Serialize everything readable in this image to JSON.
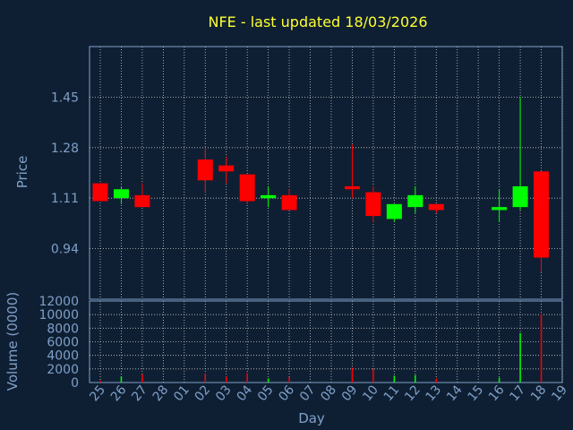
{
  "title": "NFE - last updated 18/03/2026",
  "colors": {
    "background": "#0f1f33",
    "title": "#ffff33",
    "axis_text": "#7fa0c8",
    "grid": "#c8c8c8",
    "up": "#00ff00",
    "down": "#ff0000"
  },
  "chart_data": [
    {
      "type": "candlestick",
      "ylabel": "Price",
      "yticks": [
        "0.94",
        "1.11",
        "1.28",
        "1.45"
      ],
      "ytick_values": [
        0.94,
        1.11,
        1.28,
        1.45
      ],
      "ylim": [
        0.77,
        1.62
      ],
      "grid": true,
      "x": [
        "25",
        "26",
        "27",
        "28",
        "01",
        "02",
        "03",
        "04",
        "05",
        "06",
        "07",
        "08",
        "09",
        "10",
        "11",
        "12",
        "13",
        "14",
        "15",
        "16",
        "17",
        "18",
        "19"
      ],
      "candles": [
        {
          "x": "25",
          "open": 1.16,
          "close": 1.1,
          "high": 1.16,
          "low": 1.1
        },
        {
          "x": "26",
          "open": 1.11,
          "close": 1.14,
          "high": 1.15,
          "low": 1.09
        },
        {
          "x": "27",
          "open": 1.12,
          "close": 1.08,
          "high": 1.16,
          "low": 1.08
        },
        {
          "x": "02",
          "open": 1.24,
          "close": 1.17,
          "high": 1.28,
          "low": 1.13
        },
        {
          "x": "03",
          "open": 1.22,
          "close": 1.2,
          "high": 1.25,
          "low": 1.16
        },
        {
          "x": "04",
          "open": 1.19,
          "close": 1.1,
          "high": 1.19,
          "low": 1.09
        },
        {
          "x": "05",
          "open": 1.11,
          "close": 1.12,
          "high": 1.15,
          "low": 1.08
        },
        {
          "x": "06",
          "open": 1.12,
          "close": 1.07,
          "high": 1.14,
          "low": 1.07
        },
        {
          "x": "09",
          "open": 1.15,
          "close": 1.14,
          "high": 1.29,
          "low": 1.11
        },
        {
          "x": "10",
          "open": 1.13,
          "close": 1.05,
          "high": 1.15,
          "low": 1.03
        },
        {
          "x": "11",
          "open": 1.04,
          "close": 1.09,
          "high": 1.09,
          "low": 1.03
        },
        {
          "x": "12",
          "open": 1.08,
          "close": 1.12,
          "high": 1.15,
          "low": 1.06
        },
        {
          "x": "13",
          "open": 1.09,
          "close": 1.07,
          "high": 1.09,
          "low": 1.06
        },
        {
          "x": "16",
          "open": 1.07,
          "close": 1.08,
          "high": 1.14,
          "low": 1.03
        },
        {
          "x": "17",
          "open": 1.08,
          "close": 1.15,
          "high": 1.45,
          "low": 1.07
        },
        {
          "x": "18",
          "open": 1.2,
          "close": 0.91,
          "high": 1.2,
          "low": 0.86
        }
      ]
    },
    {
      "type": "bar",
      "ylabel": "Volume (0000)",
      "xlabel": "Day",
      "yticks": [
        "0",
        "2000",
        "4000",
        "6000",
        "8000",
        "10000",
        "12000"
      ],
      "ytick_values": [
        0,
        2000,
        4000,
        6000,
        8000,
        10000,
        12000
      ],
      "ylim": [
        0,
        12000
      ],
      "grid": true,
      "categories": [
        "25",
        "26",
        "27",
        "28",
        "01",
        "02",
        "03",
        "04",
        "05",
        "06",
        "07",
        "08",
        "09",
        "10",
        "11",
        "12",
        "13",
        "14",
        "15",
        "16",
        "17",
        "18",
        "19"
      ],
      "bars": [
        {
          "x": "25",
          "value": 300,
          "dir": "down"
        },
        {
          "x": "26",
          "value": 900,
          "dir": "up"
        },
        {
          "x": "27",
          "value": 1200,
          "dir": "down"
        },
        {
          "x": "02",
          "value": 1300,
          "dir": "down"
        },
        {
          "x": "03",
          "value": 900,
          "dir": "down"
        },
        {
          "x": "04",
          "value": 1400,
          "dir": "down"
        },
        {
          "x": "05",
          "value": 600,
          "dir": "up"
        },
        {
          "x": "06",
          "value": 800,
          "dir": "down"
        },
        {
          "x": "09",
          "value": 2200,
          "dir": "down"
        },
        {
          "x": "10",
          "value": 2000,
          "dir": "down"
        },
        {
          "x": "11",
          "value": 1000,
          "dir": "up"
        },
        {
          "x": "12",
          "value": 1100,
          "dir": "up"
        },
        {
          "x": "13",
          "value": 600,
          "dir": "down"
        },
        {
          "x": "16",
          "value": 700,
          "dir": "up"
        },
        {
          "x": "17",
          "value": 7300,
          "dir": "up"
        },
        {
          "x": "18",
          "value": 10100,
          "dir": "down"
        }
      ]
    }
  ]
}
